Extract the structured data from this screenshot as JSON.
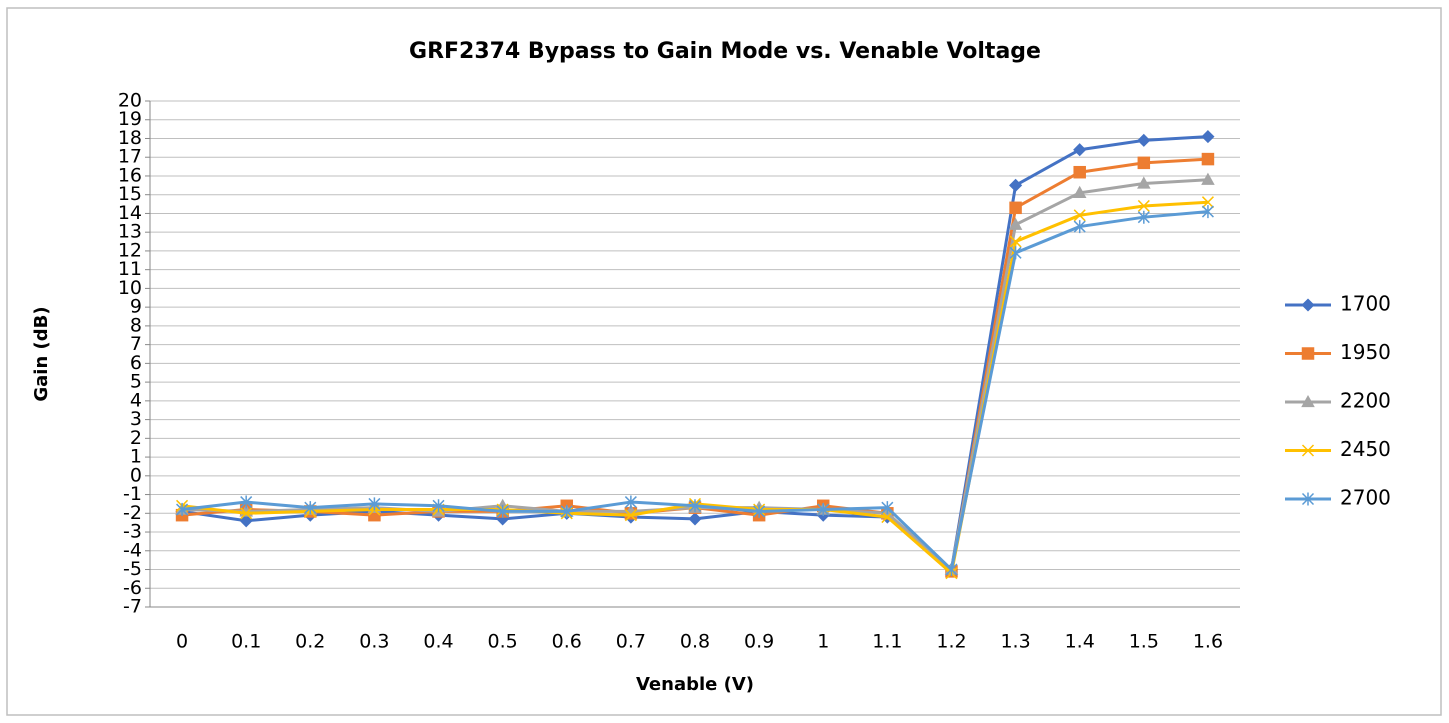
{
  "chart_data": {
    "type": "line",
    "title": "GRF2374  Bypass to Gain Mode vs. Venable Voltage",
    "x_label": "Venable (V)",
    "y_label": "Gain (dB)",
    "categories": [
      "0",
      "0.1",
      "0.2",
      "0.3",
      "0.4",
      "0.5",
      "0.6",
      "0.7",
      "0.8",
      "0.9",
      "1",
      "1.1",
      "1.2",
      "1.3",
      "1.4",
      "1.5",
      "1.6"
    ],
    "series": [
      {
        "name": "1700",
        "color": "#4472c4",
        "marker": "diamond",
        "values": [
          -1.9,
          -2.4,
          -2.1,
          -1.9,
          -2.1,
          -2.3,
          -2.0,
          -2.2,
          -2.3,
          -1.9,
          -2.1,
          -2.2,
          -5.0,
          15.5,
          17.4,
          17.9,
          18.1
        ]
      },
      {
        "name": "1950",
        "color": "#ed7d31",
        "marker": "square",
        "values": [
          -2.1,
          -1.8,
          -1.9,
          -2.1,
          -1.9,
          -1.9,
          -1.6,
          -2.0,
          -1.7,
          -2.1,
          -1.6,
          -2.0,
          -5.1,
          14.3,
          16.2,
          16.7,
          16.9
        ]
      },
      {
        "name": "2200",
        "color": "#a5a5a5",
        "marker": "triangle",
        "values": [
          -1.8,
          -1.9,
          -1.8,
          -1.7,
          -1.9,
          -1.6,
          -1.9,
          -1.9,
          -1.7,
          -1.7,
          -1.8,
          -2.0,
          -5.0,
          13.4,
          15.1,
          15.6,
          15.8
        ]
      },
      {
        "name": "2450",
        "color": "#ffc000",
        "marker": "x",
        "values": [
          -1.6,
          -2.0,
          -1.9,
          -1.8,
          -1.8,
          -1.8,
          -2.0,
          -2.1,
          -1.5,
          -1.8,
          -1.8,
          -2.2,
          -5.2,
          12.5,
          13.9,
          14.4,
          14.6
        ]
      },
      {
        "name": "2700",
        "color": "#5b9bd5",
        "marker": "star",
        "values": [
          -1.8,
          -1.4,
          -1.7,
          -1.5,
          -1.6,
          -1.9,
          -1.9,
          -1.4,
          -1.6,
          -1.9,
          -1.8,
          -1.7,
          -5.0,
          11.9,
          13.3,
          13.8,
          14.1
        ]
      }
    ],
    "ylim": [
      -7,
      20
    ],
    "yticks": [
      -7,
      -6,
      -5,
      -4,
      -3,
      -2,
      -1,
      0,
      1,
      2,
      3,
      4,
      5,
      6,
      7,
      8,
      9,
      10,
      11,
      12,
      13,
      14,
      15,
      16,
      17,
      18,
      19,
      20
    ],
    "grid": true,
    "legend": "right"
  }
}
